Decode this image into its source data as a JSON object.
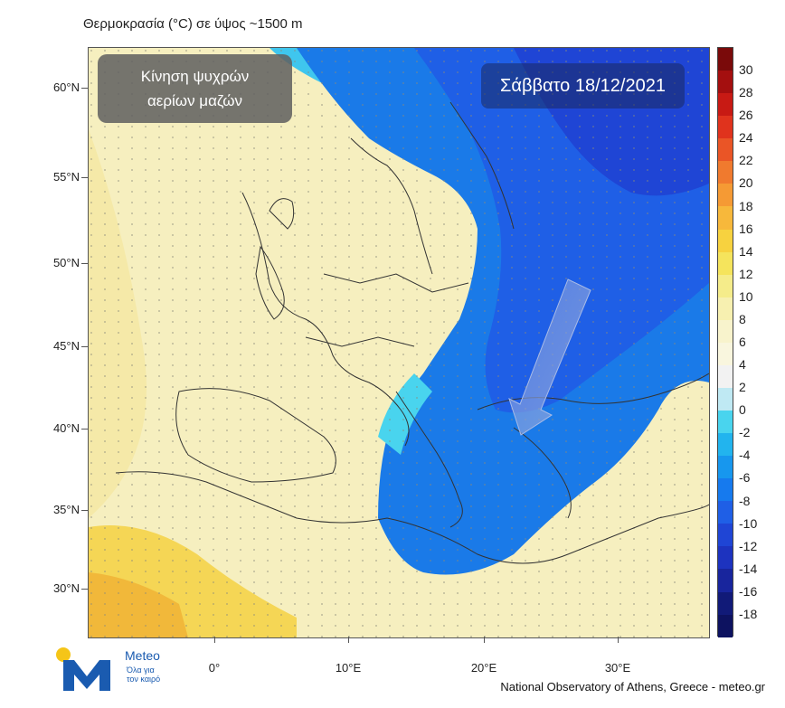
{
  "map": {
    "title": "Θερμοκρασία (°C) σε ύψος ~1500 m",
    "cold_box_lines": [
      "Κίνηση ψυχρών",
      "αερίων μαζών"
    ],
    "date_label": "Σάββατο 18/12/2021",
    "lat_labels": [
      "60°N",
      "55°N",
      "50°N",
      "45°N",
      "40°N",
      "35°N",
      "30°N"
    ],
    "lon_labels": [
      "0°",
      "10°E",
      "20°E",
      "30°E"
    ],
    "colorbar_labels": [
      "30",
      "28",
      "26",
      "24",
      "22",
      "20",
      "18",
      "16",
      "14",
      "12",
      "10",
      "8",
      "6",
      "4",
      "2",
      "0",
      "-2",
      "-4",
      "-6",
      "-8",
      "-10",
      "-12",
      "-14",
      "-16",
      "-18"
    ],
    "colorbar_colors": [
      "#7a0a0a",
      "#a40f0f",
      "#c81a14",
      "#e0331d",
      "#ea5526",
      "#f07a2e",
      "#f59a34",
      "#f7b83b",
      "#f7d23f",
      "#f5e45c",
      "#f5ec8a",
      "#f7f0b0",
      "#f8f3cc",
      "#f9f6de",
      "#f2f2f2",
      "#bfe9f3",
      "#49d4ee",
      "#22b4ee",
      "#1797ee",
      "#167aee",
      "#1f5fe6",
      "#1f45d5",
      "#1d33bf",
      "#18259d",
      "#111a78",
      "#0d1260"
    ],
    "logo_name": "Meteo",
    "logo_tagline": [
      "Όλα για",
      "τον καιρό"
    ],
    "credit": "National Observatory of Athens, Greece - meteo.gr",
    "colors": {
      "warm": "#f6efbf",
      "cold": "#1a7ae8",
      "frame": "#555555"
    }
  }
}
